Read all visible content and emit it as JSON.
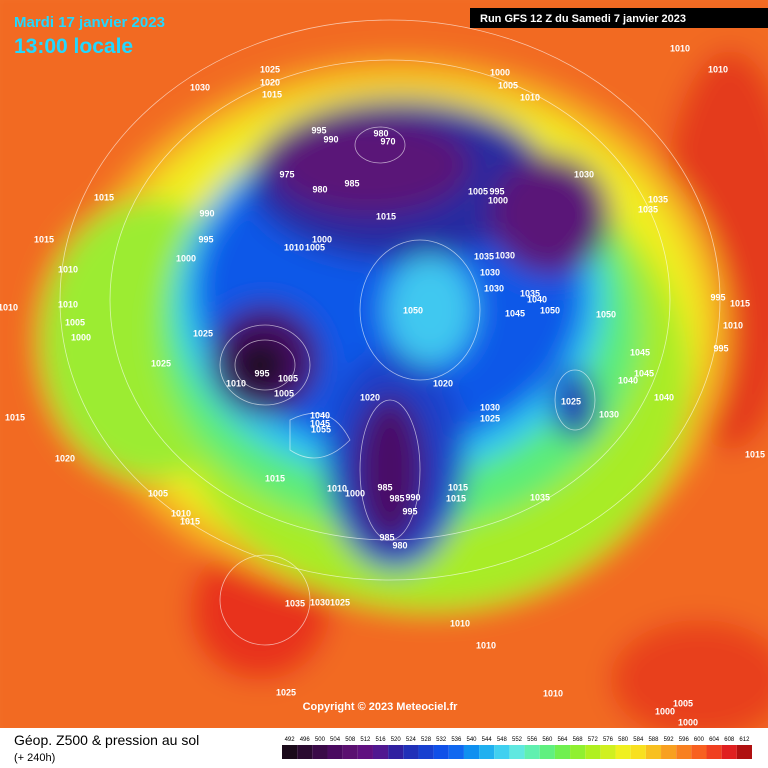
{
  "header": {
    "date": "Mardi 17 janvier 2023",
    "time": "13:00 locale",
    "run": "Run GFS 12 Z du Samedi 7 janvier 2023"
  },
  "footer": {
    "title": "Géop. Z500 & pression au sol",
    "subtitle": "(+ 240h)",
    "copyright": "Copyright © 2023 Meteociel.fr"
  },
  "colorbar": {
    "ticks": [
      492,
      496,
      500,
      504,
      508,
      512,
      516,
      520,
      524,
      528,
      532,
      536,
      540,
      544,
      548,
      552,
      556,
      560,
      564,
      568,
      572,
      576,
      580,
      584,
      588,
      592,
      596,
      600,
      604,
      608,
      612
    ],
    "colors": [
      "#1a0a1a",
      "#2a0a30",
      "#3a0a48",
      "#4a0a60",
      "#5a1070",
      "#601080",
      "#501890",
      "#3020a0",
      "#2030b8",
      "#1840d0",
      "#1050e8",
      "#1068f0",
      "#1090f0",
      "#20b0f0",
      "#40d0f0",
      "#60e8e0",
      "#60f0b0",
      "#60f080",
      "#70f050",
      "#90f030",
      "#b0f020",
      "#d0f020",
      "#f0f020",
      "#f8e020",
      "#f8c020",
      "#f8a020",
      "#f88020",
      "#f86020",
      "#f04020",
      "#e02020",
      "#b01010"
    ]
  },
  "isobar_labels": [
    "1030",
    "1025",
    "1020",
    "1015",
    "1000",
    "1005",
    "1010",
    "1010",
    "1010",
    "995",
    "990",
    "980",
    "970",
    "975",
    "980",
    "985",
    "1005",
    "995",
    "1000",
    "1030",
    "1035",
    "1035",
    "1015",
    "990",
    "995",
    "1015",
    "1000",
    "1010",
    "1005",
    "1000",
    "1015",
    "1035",
    "1030",
    "1030",
    "1030",
    "1035",
    "1040",
    "1045",
    "1050",
    "1050",
    "1050",
    "1010",
    "1010",
    "1005",
    "1000",
    "1010",
    "1025",
    "1025",
    "995",
    "1005",
    "1010",
    "1005",
    "1045",
    "1040",
    "1045",
    "1040",
    "1025",
    "1030",
    "995",
    "1015",
    "1010",
    "995",
    "1020",
    "1020",
    "1030",
    "1025",
    "1040",
    "1045",
    "1055",
    "1015",
    "1015",
    "1020",
    "1010",
    "1000",
    "985",
    "985",
    "990",
    "995",
    "1015",
    "1015",
    "1035",
    "1005",
    "1010",
    "1015",
    "985",
    "980",
    "1015",
    "1035",
    "1030",
    "1025",
    "1010",
    "1010",
    "1025",
    "1010",
    "1005",
    "1000",
    "1000"
  ]
}
